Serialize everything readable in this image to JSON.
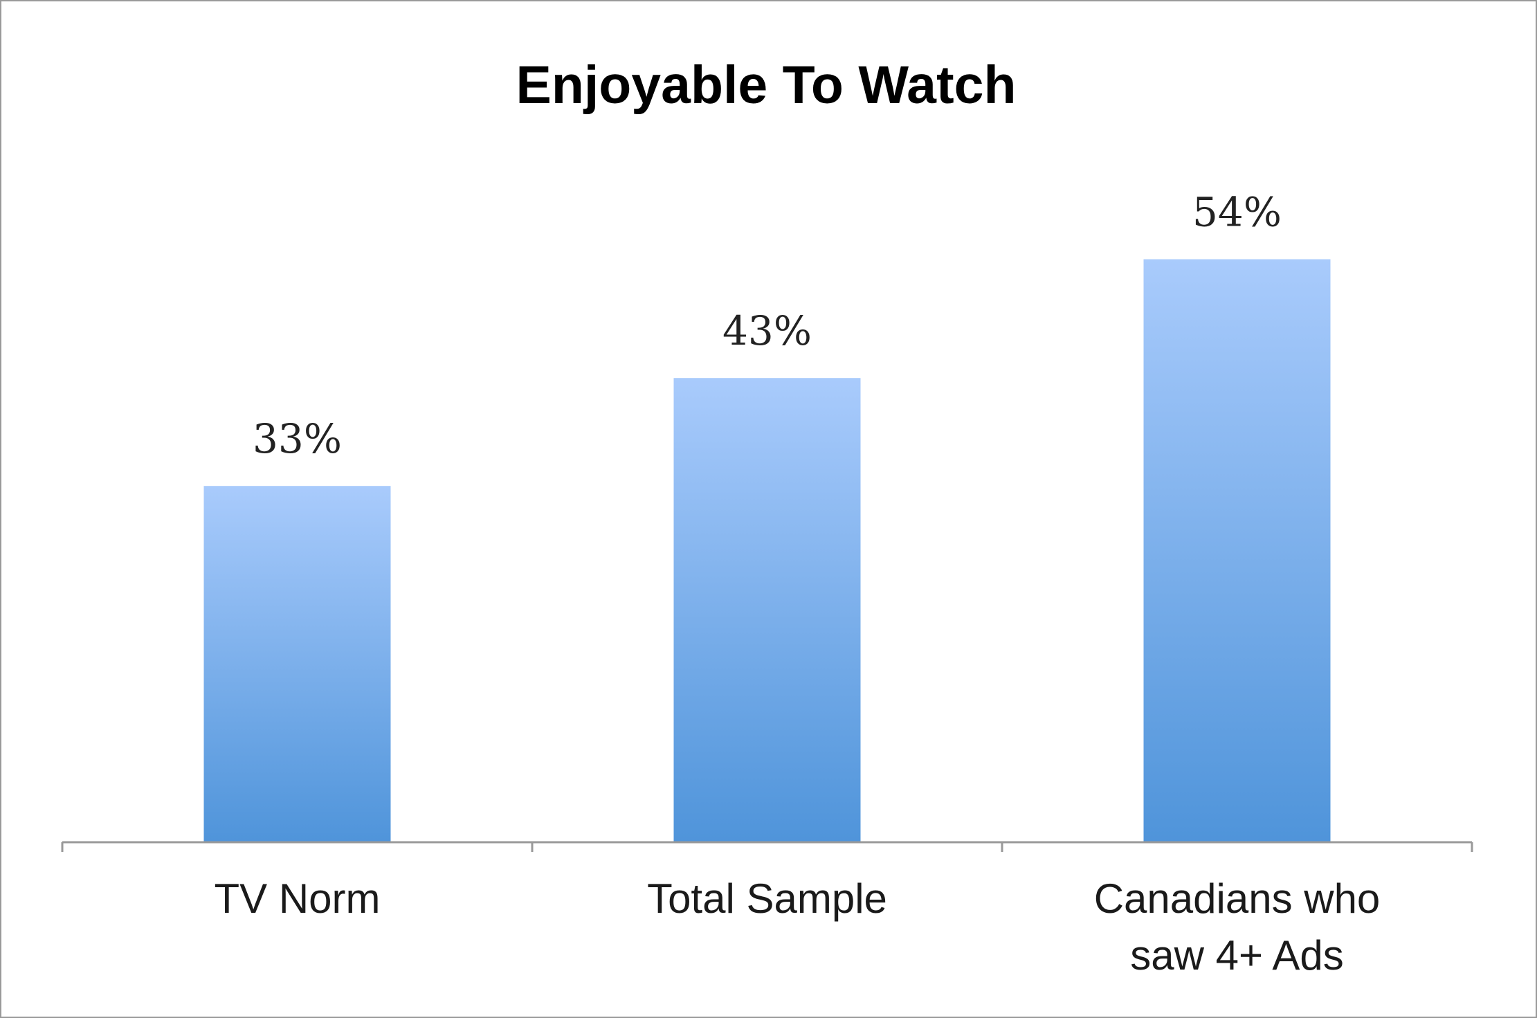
{
  "chart_data": {
    "type": "bar",
    "title": "Enjoyable To Watch",
    "categories": [
      [
        "TV Norm"
      ],
      [
        "Total Sample"
      ],
      [
        "Canadians who",
        "saw 4+ Ads"
      ]
    ],
    "values": [
      33,
      43,
      54
    ],
    "value_labels": [
      "33%",
      "43%",
      "54%"
    ],
    "value_unit": "%",
    "xlabel": "",
    "ylabel": "",
    "ylim": [
      0,
      60
    ],
    "grid": false,
    "legend": "none",
    "colors": {
      "bar_top": "#a9cbfc",
      "bar_bottom": "#4f94da",
      "axis": "#999999"
    }
  }
}
